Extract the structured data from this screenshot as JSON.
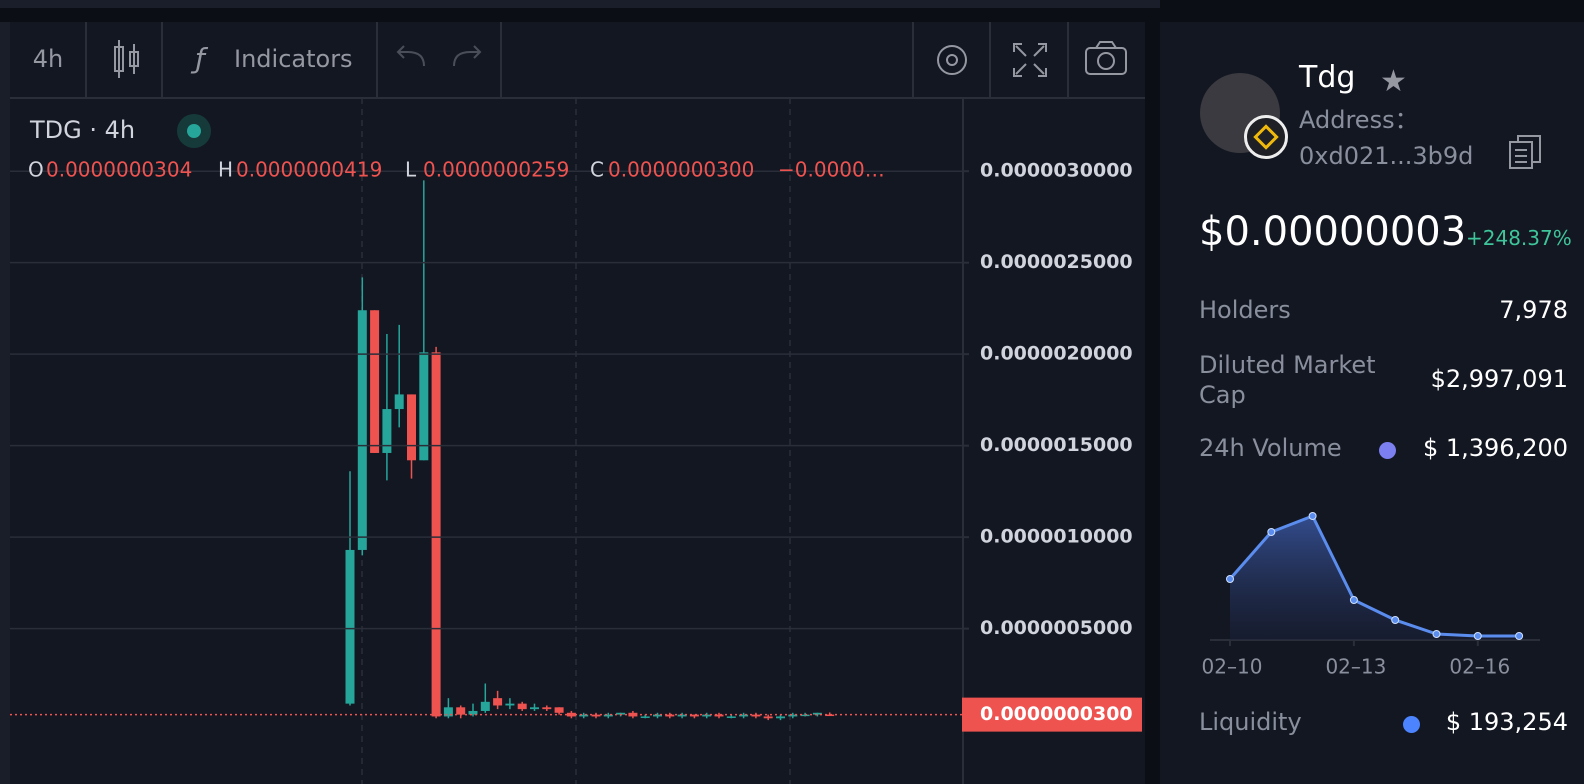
{
  "toolbar": {
    "interval": "4h",
    "indicators": "Indicators"
  },
  "chart_data": [
    {
      "type": "candlestick",
      "title": "TDG · 4h",
      "legend": [
        {
          "key": "O",
          "value": "0.0000000304"
        },
        {
          "key": "H",
          "value": "0.0000000419"
        },
        {
          "key": "L",
          "value": "0.0000000259"
        },
        {
          "key": "C",
          "value": "0.0000000300"
        }
      ],
      "change": "−0.0000…",
      "open": [
        9e-08,
        9.3e-07,
        2.24e-06,
        1.46e-06,
        1.7e-06,
        1.78e-06,
        1.42e-06,
        2.01e-06,
        2e-08,
        7e-08,
        3e-08,
        5e-08,
        1.2e-07,
        8e-08,
        9e-08,
        6e-08,
        7e-08,
        7e-08,
        4e-08,
        2e-08,
        3e-08,
        2e-08,
        3e-08,
        4e-08,
        2e-08,
        2e-08,
        3e-08,
        2e-08,
        3e-08,
        2e-08,
        3e-08,
        2e-08,
        2e-08,
        3e-08,
        2e-08,
        1e-08,
        2e-08,
        3e-08,
        3e-08,
        3.04e-08
      ],
      "high": [
        1.36e-06,
        2.42e-06,
        2.24e-06,
        2.11e-06,
        2.16e-06,
        1.78e-06,
        2.95e-06,
        2.04e-06,
        1.2e-07,
        8e-08,
        9e-08,
        2e-07,
        1.6e-07,
        1.2e-07,
        1e-07,
        9e-08,
        8e-08,
        7e-08,
        5e-08,
        4e-08,
        4e-08,
        4e-08,
        4e-08,
        5e-08,
        3e-08,
        4e-08,
        4e-08,
        4e-08,
        3e-08,
        4e-08,
        4e-08,
        3e-08,
        4e-08,
        4e-08,
        3e-08,
        3e-08,
        4e-08,
        4e-08,
        4e-08,
        4.19e-08
      ],
      "low": [
        8e-08,
        9e-07,
        1.46e-06,
        1.31e-06,
        1.6e-06,
        1.32e-06,
        1.42e-06,
        1e-08,
        1e-08,
        1e-08,
        2e-08,
        4e-08,
        6e-08,
        6e-08,
        5e-08,
        5e-08,
        5e-08,
        3e-08,
        1e-08,
        1e-08,
        1e-08,
        1e-08,
        2e-08,
        1e-08,
        1e-08,
        1e-08,
        1e-08,
        1e-08,
        1e-08,
        1e-08,
        1e-08,
        1e-08,
        1e-08,
        1e-08,
        0,
        0,
        1e-08,
        2e-08,
        2e-08,
        2.59e-08
      ],
      "close": [
        9.3e-07,
        2.24e-06,
        1.46e-06,
        1.7e-06,
        1.78e-06,
        1.42e-06,
        2.01e-06,
        2e-08,
        7e-08,
        3e-08,
        5e-08,
        1e-07,
        8e-08,
        9e-08,
        6e-08,
        7e-08,
        6e-08,
        4e-08,
        2e-08,
        3e-08,
        2e-08,
        3e-08,
        4e-08,
        2e-08,
        2e-08,
        3e-08,
        2e-08,
        3e-08,
        2e-08,
        3e-08,
        2e-08,
        2e-08,
        3e-08,
        2e-08,
        1e-08,
        2e-08,
        3e-08,
        3e-08,
        4e-08,
        3e-08
      ],
      "up_color": "#26a69a",
      "down_color": "#ef5350",
      "ylim": [
        -3e-07,
        3.4e-06
      ],
      "yticks": [
        {
          "value": 5e-07,
          "label": "0.0000005000"
        },
        {
          "value": 1e-06,
          "label": "0.0000010000"
        },
        {
          "value": 1.5e-06,
          "label": "0.0000015000"
        },
        {
          "value": 2e-06,
          "label": "0.0000020000"
        },
        {
          "value": 2.5e-06,
          "label": "0.0000025000"
        },
        {
          "value": 3e-06,
          "label": "0.0000030000"
        }
      ],
      "grid": true,
      "last_price": {
        "value": 3e-08,
        "label": "0.0000000300"
      }
    },
    {
      "type": "area",
      "categories": [
        "02–10",
        null,
        null,
        "02–13",
        null,
        null,
        "02–16",
        null
      ],
      "values": [
        61,
        108,
        124,
        40,
        20,
        6,
        4,
        4
      ],
      "color": "#5b8def",
      "ylim": [
        0,
        130
      ]
    }
  ],
  "token": {
    "name": "Tdg",
    "address_label": "Address：",
    "address": "0xd021...3b9d",
    "price": "$0.00000003",
    "change": "+248.37%",
    "stats": [
      {
        "label": "Holders",
        "value": "7,978"
      },
      {
        "label": "Diluted Market Cap",
        "value": "$2,997,091"
      },
      {
        "label": "24h Volume",
        "value": "$ 1,396,200"
      },
      {
        "label": "Liquidity",
        "value": "$ 193,254"
      }
    ]
  }
}
